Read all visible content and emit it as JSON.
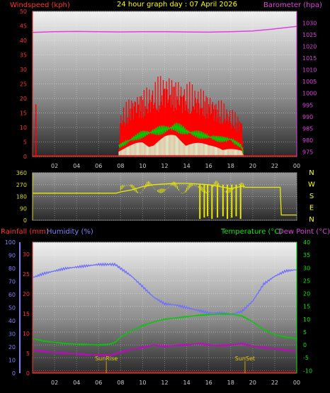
{
  "header": {
    "title": "24 hour graph day : 07 April 2026",
    "wind_label": "Windspeed (kph)",
    "baro_label": "Barometer (hpa)"
  },
  "bottom_header": {
    "rain_label": "Rainfall (mm)",
    "humidity_label": "Humidity (%)",
    "temp_label": "Temperature (°C)",
    "dew_label": "Dew Point (°C)"
  },
  "markers": {
    "sunrise": "SunRise",
    "sunset": "SunSet"
  },
  "compass": [
    "N",
    "W",
    "S",
    "E",
    "N"
  ],
  "colors": {
    "windspeed": "#ff0000",
    "wind_avg": "#00cc00",
    "wind_gust_light": "#d8ffd8",
    "barometer": "#e040e0",
    "direction": "#e8e800",
    "humidity": "#7070ff",
    "temperature": "#00cc00",
    "dewpoint": "#cc00cc",
    "rainfall": "#ff0000"
  },
  "chart_data": [
    {
      "type": "line",
      "title": "24 hour graph day : 07 April 2026",
      "xlabel": "",
      "x_ticks": [
        "02",
        "04",
        "06",
        "08",
        "10",
        "12",
        "14",
        "16",
        "18",
        "20",
        "22",
        "00"
      ],
      "xlim": [
        0,
        24
      ],
      "ylabel": "Windspeed (kph)",
      "ylim": [
        0,
        50
      ],
      "y_ticks": [
        0,
        5,
        10,
        15,
        20,
        25,
        30,
        35,
        40,
        45,
        50
      ],
      "y2label": "Barometer (hpa)",
      "y2lim": [
        973,
        1035
      ],
      "y2_ticks": [
        975,
        980,
        985,
        990,
        995,
        1000,
        1005,
        1010,
        1015,
        1020,
        1025,
        1030
      ],
      "grid": true,
      "series": [
        {
          "name": "Barometer (hpa)",
          "axis": "right",
          "x": [
            0,
            2,
            4,
            6,
            8,
            10,
            12,
            14,
            16,
            18,
            20,
            22,
            24
          ],
          "values": [
            1026,
            1026.3,
            1026.4,
            1026.3,
            1026.2,
            1026.3,
            1026.3,
            1026.2,
            1026.1,
            1026.3,
            1026.6,
            1027.5,
            1028.6
          ]
        },
        {
          "name": "Windspeed gust",
          "axis": "left",
          "x": [
            0.3,
            7.8,
            8,
            9,
            10,
            11,
            12,
            13,
            14,
            15,
            16,
            17,
            18,
            19,
            19.2
          ],
          "values": [
            18,
            0,
            16,
            22,
            24,
            26,
            30,
            28,
            26,
            25,
            23,
            20,
            17,
            14,
            0
          ]
        },
        {
          "name": "Windspeed average",
          "axis": "left",
          "x": [
            7.8,
            9,
            10,
            11,
            12,
            13,
            14,
            15,
            16,
            17,
            18,
            19,
            19.2
          ],
          "values": [
            4,
            7,
            9,
            10,
            11,
            12,
            10,
            9,
            8,
            7,
            7,
            4,
            0
          ]
        },
        {
          "name": "Windspeed low",
          "axis": "left",
          "x": [
            7.8,
            9,
            10,
            11,
            12,
            13,
            14,
            15,
            16,
            17,
            18,
            19,
            19.2
          ],
          "values": [
            2,
            4,
            6,
            5,
            7,
            8,
            6,
            5,
            4,
            4,
            3,
            2,
            0
          ]
        }
      ]
    },
    {
      "type": "line",
      "title": "",
      "ylabel": "",
      "ylim": [
        0,
        360
      ],
      "y_ticks": [
        0,
        90,
        180,
        270,
        360
      ],
      "xlim": [
        0,
        24
      ],
      "grid": true,
      "series": [
        {
          "name": "Wind direction",
          "x": [
            0,
            7.6,
            8.0,
            9,
            10,
            11,
            12,
            13,
            14,
            15,
            16,
            17,
            18,
            19.2,
            19.3,
            22.5,
            22.6,
            24
          ],
          "values": [
            205,
            205,
            215,
            230,
            255,
            270,
            275,
            280,
            280,
            275,
            270,
            255,
            240,
            260,
            250,
            250,
            40,
            40
          ]
        }
      ]
    },
    {
      "type": "line",
      "title": "",
      "x_ticks": [
        "02",
        "04",
        "06",
        "08",
        "10",
        "12",
        "14",
        "16",
        "18",
        "20",
        "22",
        "00"
      ],
      "xlim": [
        0,
        24
      ],
      "y_left_ticks": [
        0,
        5,
        10,
        15,
        20,
        25,
        30
      ],
      "y_left_lim": [
        0,
        33
      ],
      "y_hum_ticks": [
        0,
        10,
        20,
        30,
        40,
        50,
        60,
        70,
        80,
        90,
        100
      ],
      "y_hum_lim": [
        0,
        100
      ],
      "y_right_ticks": [
        -10,
        -5,
        0,
        5,
        10,
        15,
        20,
        25,
        30,
        35,
        40
      ],
      "y_right_lim": [
        -11,
        40
      ],
      "grid": true,
      "series": [
        {
          "name": "Humidity (%)",
          "axis": "humidity",
          "x": [
            0,
            1,
            2,
            3,
            4,
            5,
            6,
            7,
            7.5,
            8,
            9,
            10,
            11,
            12,
            13,
            14,
            15,
            16,
            17,
            18,
            19,
            20,
            21,
            22,
            23,
            24
          ],
          "values": [
            73,
            76,
            78,
            80,
            81,
            82,
            83,
            83,
            83,
            80,
            74,
            66,
            58,
            53,
            52,
            50,
            48,
            46,
            46,
            45,
            47,
            55,
            68,
            74,
            78,
            79
          ]
        },
        {
          "name": "Temperature (°C)",
          "axis": "right",
          "x": [
            0,
            1,
            2,
            3,
            4,
            5,
            6,
            7,
            7.5,
            8,
            9,
            10,
            11,
            12,
            13,
            14,
            15,
            16,
            17,
            18,
            19,
            20,
            21,
            22,
            23,
            24
          ],
          "values": [
            2.5,
            1.5,
            1,
            0.5,
            0.3,
            0.2,
            0,
            0.3,
            1,
            3,
            5.5,
            7.5,
            9,
            10,
            10.5,
            11,
            11.5,
            11.8,
            12,
            12,
            11.3,
            9,
            6,
            4,
            3,
            2.5
          ]
        },
        {
          "name": "Dew Point (°C)",
          "axis": "right",
          "x": [
            0,
            1,
            2,
            3,
            4,
            5,
            6,
            7,
            7.5,
            8,
            9,
            10,
            11,
            12,
            13,
            14,
            15,
            16,
            17,
            18,
            19,
            20,
            21,
            22,
            23,
            24
          ],
          "values": [
            -2,
            -2.5,
            -3,
            -3.2,
            -3.5,
            -3.8,
            -4,
            -4,
            -3.5,
            -2.8,
            -1.8,
            -1,
            0,
            -0.5,
            -0.2,
            0,
            0.5,
            0,
            -0.3,
            0,
            0.5,
            -0.5,
            -1,
            -1.5,
            -2,
            -2.5
          ]
        },
        {
          "name": "Rainfall (mm)",
          "axis": "left",
          "x": [
            0,
            24
          ],
          "values": [
            0,
            0
          ]
        }
      ],
      "annotations": [
        {
          "text": "SunRise",
          "x": 6.7
        },
        {
          "text": "SunSet",
          "x": 19.3
        }
      ]
    }
  ]
}
